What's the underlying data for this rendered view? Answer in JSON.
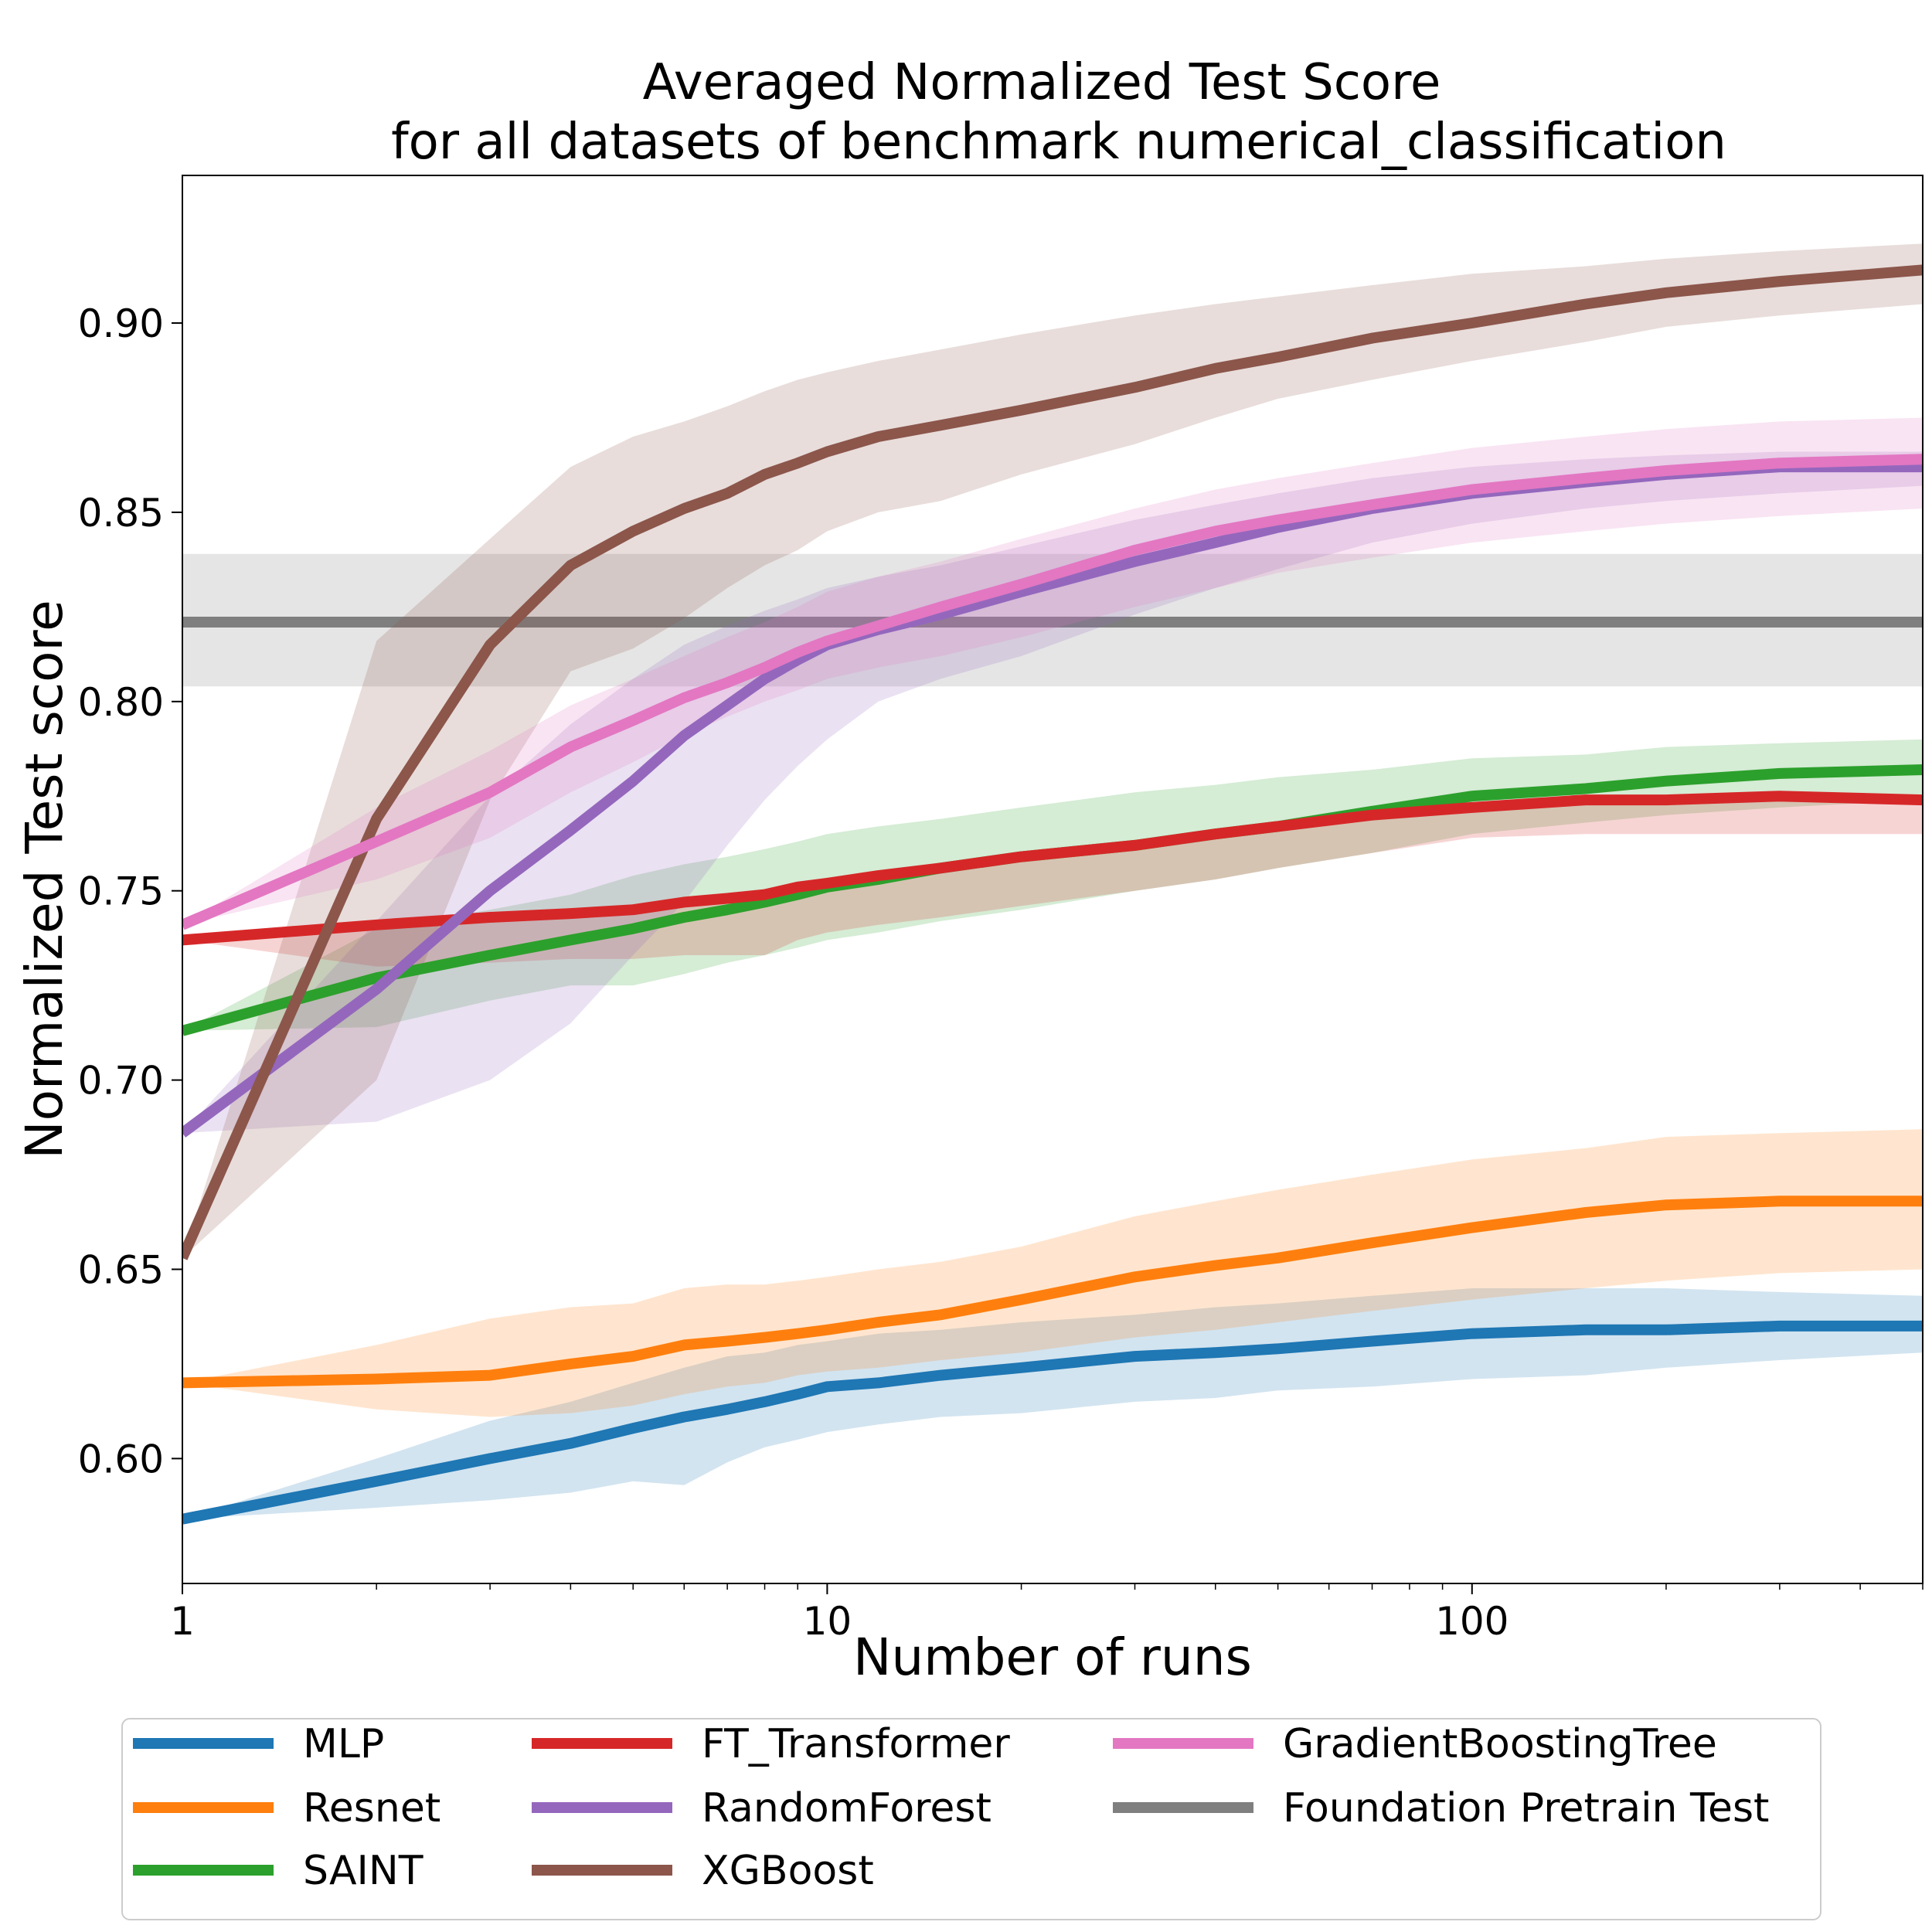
{
  "chart_data": {
    "type": "line",
    "title": "Averaged Normalized Test Score",
    "subtitle": "for all datasets of benchmark numerical_classification",
    "xlabel": "Number of runs",
    "ylabel": "Normalized Test score",
    "xscale": "log",
    "xlim": [
      1,
      500
    ],
    "ylim": [
      0.567,
      0.939
    ],
    "xticks": [
      1,
      10,
      100
    ],
    "xtick_labels": [
      "1",
      "10",
      "100"
    ],
    "yticks": [
      0.6,
      0.65,
      0.7,
      0.75,
      0.8,
      0.85,
      0.9
    ],
    "ytick_labels": [
      "0.60",
      "0.65",
      "0.70",
      "0.75",
      "0.80",
      "0.85",
      "0.90"
    ],
    "grid": false,
    "legend_position": "bottom",
    "legend_columns": 3,
    "x": [
      1,
      2,
      3,
      4,
      5,
      6,
      7,
      8,
      9,
      10,
      12,
      15,
      20,
      30,
      40,
      50,
      70,
      100,
      150,
      200,
      300,
      500
    ],
    "series": [
      {
        "name": "MLP",
        "color": "#1f77b4",
        "values": [
          0.584,
          0.594,
          0.6,
          0.604,
          0.608,
          0.611,
          0.613,
          0.615,
          0.617,
          0.619,
          0.62,
          0.622,
          0.624,
          0.627,
          0.628,
          0.629,
          0.631,
          0.633,
          0.634,
          0.634,
          0.635,
          0.635
        ],
        "lower": [
          0.584,
          0.587,
          0.589,
          0.591,
          0.594,
          0.593,
          0.599,
          0.603,
          0.605,
          0.607,
          0.609,
          0.611,
          0.612,
          0.615,
          0.616,
          0.618,
          0.619,
          0.621,
          0.622,
          0.624,
          0.626,
          0.628
        ],
        "upper": [
          0.584,
          0.6,
          0.61,
          0.615,
          0.62,
          0.624,
          0.627,
          0.628,
          0.63,
          0.631,
          0.633,
          0.634,
          0.636,
          0.638,
          0.64,
          0.641,
          0.643,
          0.645,
          0.645,
          0.645,
          0.644,
          0.643
        ]
      },
      {
        "name": "Resnet",
        "color": "#ff7f0e",
        "values": [
          0.62,
          0.621,
          0.622,
          0.625,
          0.627,
          0.63,
          0.631,
          0.632,
          0.633,
          0.634,
          0.636,
          0.638,
          0.642,
          0.648,
          0.651,
          0.653,
          0.657,
          0.661,
          0.665,
          0.667,
          0.668,
          0.668
        ],
        "lower": [
          0.62,
          0.613,
          0.611,
          0.612,
          0.614,
          0.617,
          0.619,
          0.62,
          0.622,
          0.623,
          0.624,
          0.626,
          0.628,
          0.632,
          0.634,
          0.636,
          0.639,
          0.642,
          0.645,
          0.647,
          0.649,
          0.65
        ],
        "upper": [
          0.62,
          0.63,
          0.637,
          0.64,
          0.641,
          0.645,
          0.646,
          0.646,
          0.647,
          0.648,
          0.65,
          0.652,
          0.656,
          0.664,
          0.668,
          0.671,
          0.675,
          0.679,
          0.682,
          0.685,
          0.686,
          0.687
        ]
      },
      {
        "name": "SAINT",
        "color": "#2ca02c",
        "values": [
          0.713,
          0.727,
          0.733,
          0.737,
          0.74,
          0.743,
          0.745,
          0.747,
          0.749,
          0.751,
          0.753,
          0.756,
          0.759,
          0.762,
          0.765,
          0.767,
          0.771,
          0.775,
          0.777,
          0.779,
          0.781,
          0.782
        ],
        "lower": [
          0.713,
          0.714,
          0.721,
          0.725,
          0.725,
          0.728,
          0.731,
          0.733,
          0.735,
          0.737,
          0.739,
          0.742,
          0.745,
          0.75,
          0.753,
          0.756,
          0.76,
          0.765,
          0.768,
          0.77,
          0.772,
          0.774
        ],
        "upper": [
          0.713,
          0.74,
          0.745,
          0.749,
          0.754,
          0.757,
          0.759,
          0.761,
          0.763,
          0.765,
          0.767,
          0.769,
          0.772,
          0.776,
          0.778,
          0.78,
          0.782,
          0.785,
          0.786,
          0.788,
          0.789,
          0.79
        ]
      },
      {
        "name": "FT_Transformer",
        "color": "#d62728",
        "values": [
          0.737,
          0.741,
          0.743,
          0.744,
          0.745,
          0.747,
          0.748,
          0.749,
          0.751,
          0.752,
          0.754,
          0.756,
          0.759,
          0.762,
          0.765,
          0.767,
          0.77,
          0.772,
          0.774,
          0.774,
          0.775,
          0.774
        ],
        "lower": [
          0.737,
          0.73,
          0.731,
          0.732,
          0.732,
          0.733,
          0.733,
          0.733,
          0.737,
          0.739,
          0.741,
          0.743,
          0.746,
          0.75,
          0.753,
          0.756,
          0.76,
          0.764,
          0.765,
          0.765,
          0.765,
          0.765
        ]
      },
      {
        "name": "RandomForest",
        "color": "#9467bd",
        "values": [
          0.686,
          0.724,
          0.75,
          0.766,
          0.779,
          0.791,
          0.799,
          0.806,
          0.811,
          0.815,
          0.819,
          0.823,
          0.829,
          0.837,
          0.842,
          0.846,
          0.851,
          0.855,
          0.858,
          0.86,
          0.862,
          0.862
        ],
        "lower": [
          0.686,
          0.689,
          0.7,
          0.715,
          0.733,
          0.747,
          0.762,
          0.774,
          0.783,
          0.79,
          0.8,
          0.806,
          0.812,
          0.823,
          0.83,
          0.835,
          0.842,
          0.847,
          0.851,
          0.853,
          0.855,
          0.857
        ],
        "upper": [
          0.686,
          0.742,
          0.775,
          0.794,
          0.806,
          0.815,
          0.82,
          0.824,
          0.827,
          0.83,
          0.833,
          0.836,
          0.841,
          0.848,
          0.852,
          0.855,
          0.859,
          0.862,
          0.864,
          0.865,
          0.866,
          0.866
        ]
      },
      {
        "name": "XGBoost",
        "color": "#8c564b",
        "values": [
          0.653,
          0.769,
          0.815,
          0.836,
          0.845,
          0.851,
          0.855,
          0.86,
          0.863,
          0.866,
          0.87,
          0.873,
          0.877,
          0.883,
          0.888,
          0.891,
          0.896,
          0.9,
          0.905,
          0.908,
          0.911,
          0.914
        ],
        "lower": [
          0.653,
          0.7,
          0.774,
          0.808,
          0.814,
          0.822,
          0.83,
          0.836,
          0.84,
          0.845,
          0.85,
          0.853,
          0.86,
          0.868,
          0.875,
          0.88,
          0.885,
          0.89,
          0.895,
          0.899,
          0.902,
          0.905
        ],
        "upper": [
          0.653,
          0.816,
          0.843,
          0.862,
          0.87,
          0.874,
          0.878,
          0.882,
          0.885,
          0.887,
          0.89,
          0.893,
          0.897,
          0.902,
          0.905,
          0.907,
          0.91,
          0.913,
          0.915,
          0.917,
          0.919,
          0.921
        ]
      },
      {
        "name": "GradientBoostingTree",
        "color": "#e377c2",
        "values": [
          0.741,
          0.763,
          0.776,
          0.788,
          0.795,
          0.801,
          0.805,
          0.809,
          0.813,
          0.816,
          0.82,
          0.825,
          0.831,
          0.84,
          0.845,
          0.848,
          0.852,
          0.856,
          0.859,
          0.861,
          0.863,
          0.864
        ],
        "lower": [
          0.741,
          0.753,
          0.764,
          0.776,
          0.784,
          0.791,
          0.796,
          0.8,
          0.803,
          0.806,
          0.809,
          0.812,
          0.817,
          0.825,
          0.83,
          0.834,
          0.838,
          0.842,
          0.845,
          0.847,
          0.849,
          0.851
        ],
        "upper": [
          0.741,
          0.772,
          0.787,
          0.799,
          0.806,
          0.812,
          0.817,
          0.821,
          0.825,
          0.829,
          0.833,
          0.837,
          0.843,
          0.851,
          0.856,
          0.859,
          0.863,
          0.867,
          0.87,
          0.872,
          0.874,
          0.875
        ]
      }
    ],
    "baseline": {
      "name": "Foundation Pretrain Test",
      "color": "#7f7f7f",
      "value": 0.821,
      "lower": 0.804,
      "upper": 0.839
    }
  }
}
